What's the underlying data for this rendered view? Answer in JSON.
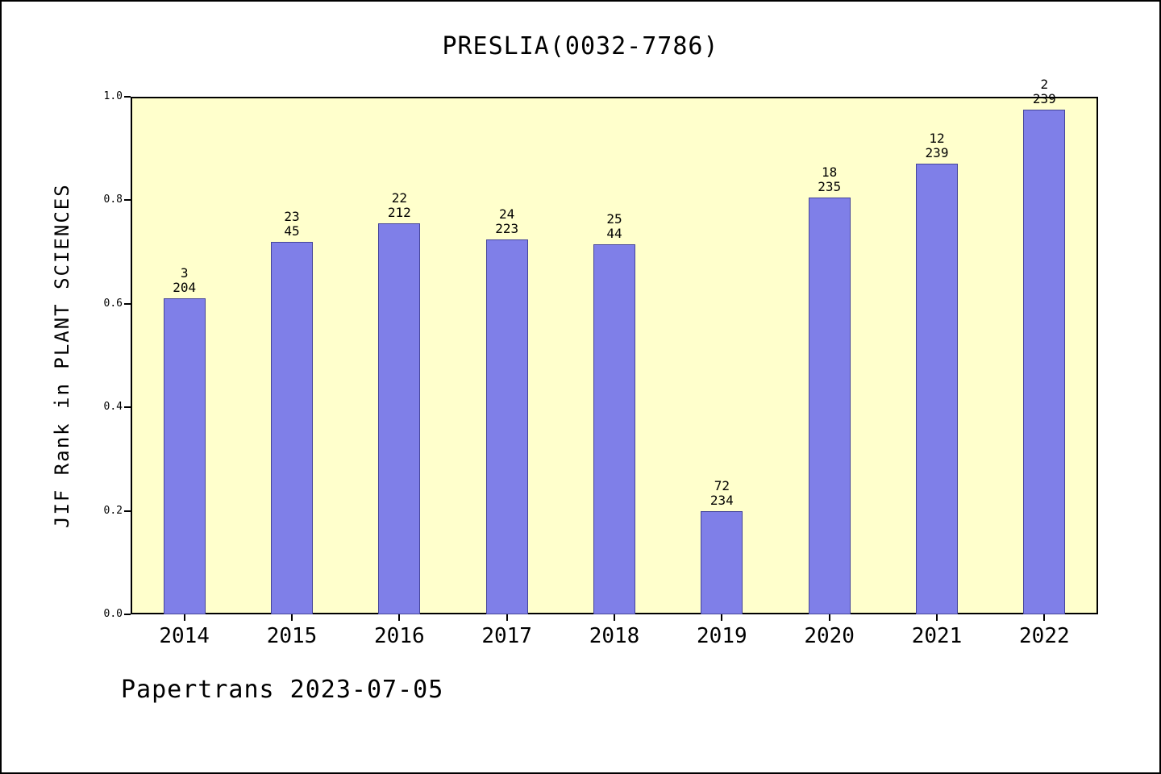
{
  "title": "PRESLIA(0032-7786)",
  "y_axis_label": "JIF Rank in PLANT SCIENCES",
  "footer": "Papertrans 2023-07-05",
  "colors": {
    "bar": "#7f7fe8",
    "bar_edge": "#45459a",
    "plot_bg": "#ffffcc",
    "axis": "#000000"
  },
  "chart_data": {
    "type": "bar",
    "title": "PRESLIA(0032-7786)",
    "xlabel": "",
    "ylabel": "JIF Rank in PLANT SCIENCES",
    "categories": [
      "2014",
      "2015",
      "2016",
      "2017",
      "2018",
      "2019",
      "2020",
      "2021",
      "2022"
    ],
    "values": [
      0.61,
      0.72,
      0.755,
      0.725,
      0.715,
      0.2,
      0.805,
      0.87,
      0.975
    ],
    "bar_labels": [
      {
        "rank": "3",
        "total": "204"
      },
      {
        "rank": "23",
        "total": "45"
      },
      {
        "rank": "22",
        "total": "212"
      },
      {
        "rank": "24",
        "total": "223"
      },
      {
        "rank": "25",
        "total": "44"
      },
      {
        "rank": "72",
        "total": "234"
      },
      {
        "rank": "18",
        "total": "235"
      },
      {
        "rank": "12",
        "total": "239"
      },
      {
        "rank": "2",
        "total": "239"
      }
    ],
    "ylim": [
      0.0,
      1.0
    ],
    "yticks": [
      "0.0",
      "0.2",
      "0.4",
      "0.6",
      "0.8",
      "1.0"
    ],
    "grid": false,
    "legend_position": "none"
  }
}
